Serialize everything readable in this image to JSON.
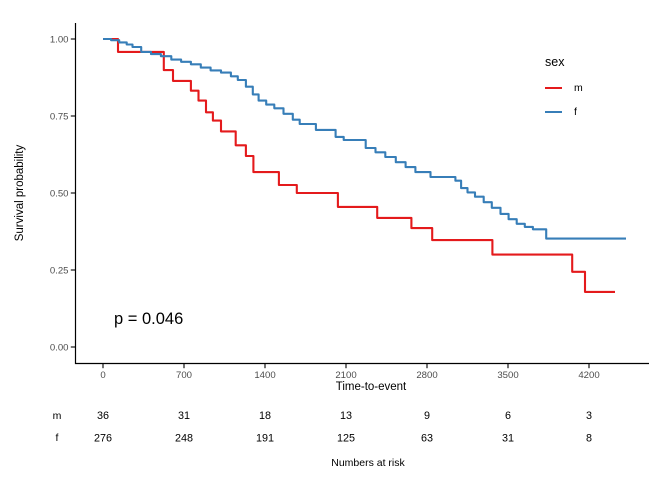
{
  "chart_data": {
    "type": "line",
    "subtype": "kaplan-meier-step-curves",
    "title": "",
    "xlabel": "Time-to-event",
    "ylabel": "Survival probability",
    "p_value": "p = 0.046",
    "grid": false,
    "xlim": [
      -230,
      4720
    ],
    "ylim": [
      0,
      1.05
    ],
    "x_ticks": [
      0,
      700,
      1400,
      2100,
      2800,
      3500,
      4200
    ],
    "y_ticks": [
      0,
      0.25,
      0.5,
      0.75,
      1
    ],
    "y_tick_labels": [
      "0.00",
      "0.25",
      "0.50",
      "0.75",
      "1.00"
    ],
    "axis_color": "#000000",
    "tick_label_color": "#4d4d4d",
    "legend": {
      "title": "sex",
      "position": "right",
      "entries": [
        {
          "label": "m",
          "color": "#E41A1C"
        },
        {
          "label": "f",
          "color": "#377EB8"
        }
      ]
    },
    "series": [
      {
        "name": "m",
        "color": "#E41A1C",
        "end_time": 4425,
        "points": [
          [
            0,
            1.0
          ],
          [
            130,
            0.958
          ],
          [
            525,
            0.899
          ],
          [
            605,
            0.864
          ],
          [
            760,
            0.832
          ],
          [
            825,
            0.8
          ],
          [
            890,
            0.762
          ],
          [
            950,
            0.735
          ],
          [
            1020,
            0.7
          ],
          [
            1147,
            0.655
          ],
          [
            1235,
            0.62
          ],
          [
            1300,
            0.568
          ],
          [
            1520,
            0.526
          ],
          [
            1675,
            0.5
          ],
          [
            2030,
            0.455
          ],
          [
            2370,
            0.419
          ],
          [
            2665,
            0.386
          ],
          [
            2845,
            0.347
          ],
          [
            3365,
            0.3
          ],
          [
            4055,
            0.244
          ],
          [
            4165,
            0.179
          ]
        ]
      },
      {
        "name": "f",
        "color": "#377EB8",
        "end_time": 4520,
        "points": [
          [
            0,
            1.0
          ],
          [
            70,
            0.996
          ],
          [
            140,
            0.989
          ],
          [
            205,
            0.982
          ],
          [
            255,
            0.974
          ],
          [
            330,
            0.958
          ],
          [
            415,
            0.951
          ],
          [
            500,
            0.944
          ],
          [
            590,
            0.933
          ],
          [
            675,
            0.926
          ],
          [
            760,
            0.918
          ],
          [
            845,
            0.907
          ],
          [
            930,
            0.898
          ],
          [
            1020,
            0.891
          ],
          [
            1105,
            0.879
          ],
          [
            1165,
            0.867
          ],
          [
            1235,
            0.845
          ],
          [
            1295,
            0.82
          ],
          [
            1345,
            0.8
          ],
          [
            1410,
            0.787
          ],
          [
            1480,
            0.775
          ],
          [
            1560,
            0.757
          ],
          [
            1640,
            0.738
          ],
          [
            1700,
            0.724
          ],
          [
            1840,
            0.705
          ],
          [
            2010,
            0.682
          ],
          [
            2080,
            0.672
          ],
          [
            2270,
            0.646
          ],
          [
            2355,
            0.632
          ],
          [
            2440,
            0.617
          ],
          [
            2530,
            0.6
          ],
          [
            2615,
            0.584
          ],
          [
            2700,
            0.568
          ],
          [
            2830,
            0.552
          ],
          [
            3045,
            0.54
          ],
          [
            3095,
            0.516
          ],
          [
            3150,
            0.502
          ],
          [
            3215,
            0.488
          ],
          [
            3290,
            0.47
          ],
          [
            3360,
            0.452
          ],
          [
            3435,
            0.432
          ],
          [
            3505,
            0.415
          ],
          [
            3575,
            0.4
          ],
          [
            3645,
            0.39
          ],
          [
            3715,
            0.382
          ],
          [
            3830,
            0.352
          ]
        ]
      }
    ],
    "risk_table": {
      "title": "Numbers at risk",
      "times": [
        0,
        700,
        1400,
        2100,
        2800,
        3500,
        4200
      ],
      "rows": [
        {
          "label": "m",
          "values": [
            36,
            31,
            18,
            13,
            9,
            6,
            3
          ]
        },
        {
          "label": "f",
          "values": [
            276,
            248,
            191,
            125,
            63,
            31,
            8
          ]
        }
      ]
    }
  }
}
